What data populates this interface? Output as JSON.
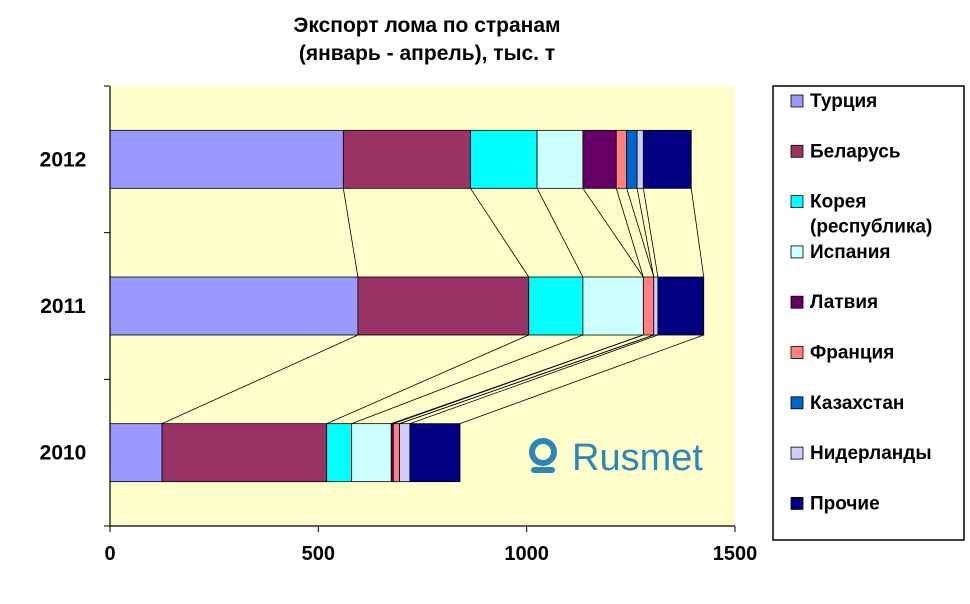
{
  "chart_data": {
    "type": "bar",
    "orientation": "horizontal",
    "stacked": true,
    "title": [
      "Экспорт лома по странам",
      "(январь - апрель), тыс. т"
    ],
    "categories": [
      "2012",
      "2011",
      "2010"
    ],
    "xlim": [
      0,
      1500
    ],
    "xticks": [
      "0",
      "500",
      "1000",
      "1500"
    ],
    "grid": false,
    "legend_position": "right",
    "series_lines": true,
    "series": [
      {
        "name": "Турция",
        "color": "#9999ff",
        "values": [
          560,
          595,
          125
        ]
      },
      {
        "name": "Беларусь",
        "color": "#993366",
        "values": [
          305,
          410,
          395
        ]
      },
      {
        "name": "Корея\n(республика)",
        "color": "#00ffff",
        "values": [
          160,
          130,
          60
        ]
      },
      {
        "name": "Испания",
        "color": "#ccffff",
        "values": [
          110,
          145,
          95
        ]
      },
      {
        "name": "Латвия",
        "color": "#660066",
        "values": [
          80,
          0,
          5
        ]
      },
      {
        "name": "Франция",
        "color": "#ff8080",
        "values": [
          25,
          25,
          15
        ]
      },
      {
        "name": "Казахстан",
        "color": "#0066cc",
        "values": [
          25,
          0,
          0
        ]
      },
      {
        "name": "Нидерланды",
        "color": "#ccccff",
        "values": [
          15,
          10,
          25
        ]
      },
      {
        "name": "Прочие",
        "color": "#000080",
        "values": [
          115,
          110,
          120
        ]
      }
    ]
  },
  "style": {
    "plot_bg": "#ffffcc",
    "frame": "#000000"
  },
  "watermark": {
    "text": "Rusmet",
    "color": "#2b86b9",
    "icon": "rusmet-logo-icon"
  }
}
